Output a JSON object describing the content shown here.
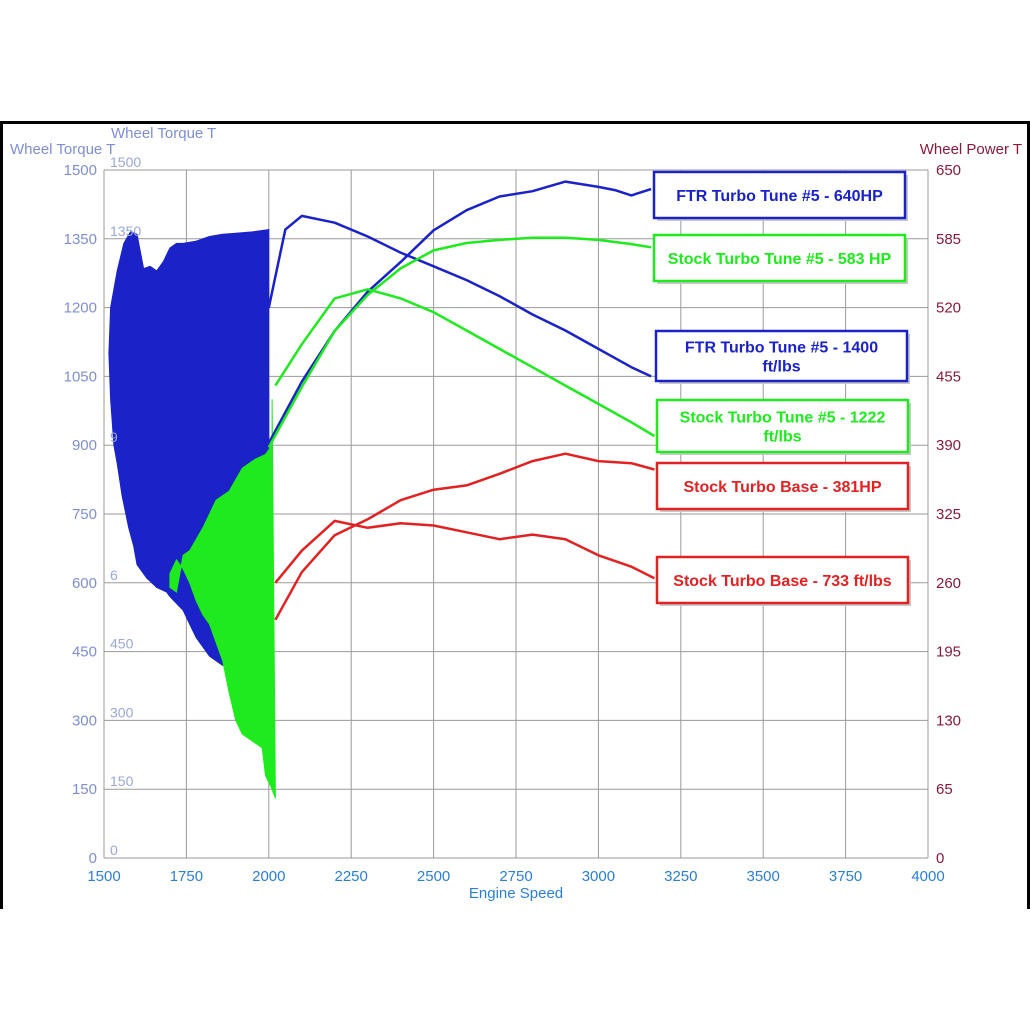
{
  "chart_data": {
    "type": "line",
    "xlabel": "Engine Speed",
    "ylabel_left": "Wheel Torque T",
    "ylabel_left_inner": "Wheel Torque T",
    "ylabel_right": "Wheel Power T",
    "xlim": [
      1500,
      4000
    ],
    "ylim_left": [
      0,
      1500
    ],
    "ylim_right": [
      0,
      650
    ],
    "x_ticks": [
      "1500",
      "1750",
      "2000",
      "2250",
      "2500",
      "2750",
      "3000",
      "3250",
      "3500",
      "3750",
      "4000"
    ],
    "y_left_ticks": [
      "0",
      "150",
      "300",
      "450",
      "600",
      "750",
      "900",
      "1050",
      "1200",
      "1350",
      "1500"
    ],
    "y_right_ticks": [
      "0",
      "65",
      "130",
      "195",
      "260",
      "325",
      "390",
      "455",
      "520",
      "585",
      "650"
    ],
    "y_inner_ticks": [
      "0",
      "150",
      "300",
      "450",
      "6",
      "9",
      "1350",
      "1500"
    ],
    "grid": true,
    "series": [
      {
        "name": "FTR Turbo Tune #5 - 640HP",
        "axis": "right",
        "color": "#1a22c8",
        "x": [
          2000,
          2100,
          2200,
          2300,
          2400,
          2500,
          2600,
          2700,
          2800,
          2900,
          3000,
          3050,
          3100,
          3160
        ],
        "y": [
          392,
          450,
          498,
          535,
          563,
          593,
          612,
          625,
          630,
          639,
          634,
          631,
          626,
          632
        ]
      },
      {
        "name": "FTR Turbo Tune #5 - 1400 ft/lbs",
        "axis": "left",
        "color": "#1a22c8",
        "x": [
          2000,
          2050,
          2100,
          2200,
          2300,
          2400,
          2500,
          2600,
          2700,
          2800,
          2900,
          3000,
          3100,
          3160
        ],
        "y": [
          1200,
          1370,
          1400,
          1385,
          1355,
          1320,
          1290,
          1260,
          1225,
          1185,
          1150,
          1110,
          1070,
          1050
        ]
      },
      {
        "name": "Stock Turbo Tune #5 - 583 HP",
        "axis": "right",
        "color": "#1eea1e",
        "x": [
          2000,
          2100,
          2200,
          2300,
          2400,
          2500,
          2600,
          2700,
          2800,
          2900,
          3000,
          3100,
          3160
        ],
        "y": [
          388,
          445,
          498,
          532,
          557,
          574,
          581,
          584,
          586,
          586,
          584,
          580,
          577
        ]
      },
      {
        "name": "Stock Turbo Tune #5 - 1222 ft/lbs",
        "axis": "left",
        "color": "#1eea1e",
        "x": [
          2020,
          2100,
          2200,
          2300,
          2400,
          2500,
          2600,
          2700,
          2800,
          2900,
          3000,
          3100,
          3170
        ],
        "y": [
          1030,
          1120,
          1220,
          1240,
          1220,
          1190,
          1150,
          1110,
          1070,
          1030,
          990,
          950,
          920
        ]
      },
      {
        "name": "Stock Turbo Base - 381HP",
        "axis": "right",
        "color": "#e22222",
        "x": [
          2020,
          2100,
          2200,
          2300,
          2400,
          2500,
          2600,
          2700,
          2800,
          2900,
          3000,
          3100,
          3170
        ],
        "y": [
          225,
          270,
          305,
          320,
          338,
          348,
          352,
          363,
          375,
          382,
          375,
          373,
          367
        ]
      },
      {
        "name": "Stock Turbo Base - 733 ft/lbs",
        "axis": "left",
        "color": "#e22222",
        "x": [
          2020,
          2100,
          2200,
          2300,
          2400,
          2500,
          2600,
          2700,
          2800,
          2900,
          3000,
          3100,
          3170
        ],
        "y": [
          600,
          670,
          735,
          720,
          730,
          725,
          710,
          695,
          705,
          695,
          660,
          635,
          610
        ]
      }
    ],
    "fill_regions": [
      {
        "color": "#1a22c8",
        "x": [
          2000,
          2000,
          1950,
          1900,
          1860,
          1820,
          1780,
          1760,
          1740,
          1700,
          1690,
          1660,
          1645,
          1630,
          1600,
          1590,
          1575,
          1555,
          1540,
          1530,
          1520,
          1515,
          1520,
          1540,
          1560,
          1580,
          1600,
          1620,
          1640,
          1660,
          1680,
          1700,
          1720,
          1740,
          1780,
          1820,
          1860,
          1900,
          1950
        ],
        "y": [
          1370,
          410,
          410,
          410,
          420,
          440,
          480,
          510,
          540,
          570,
          580,
          590,
          600,
          610,
          640,
          680,
          720,
          790,
          860,
          900,
          1000,
          1100,
          1200,
          1280,
          1340,
          1365,
          1360,
          1285,
          1290,
          1280,
          1300,
          1330,
          1340,
          1340,
          1345,
          1355,
          1360,
          1362,
          1365
        ]
      },
      {
        "color": "#1eea1e",
        "x": [
          2010,
          2020,
          2010,
          1990,
          1980,
          1940,
          1920,
          1900,
          1880,
          1860,
          1840,
          1820,
          1800,
          1780,
          1760,
          1740,
          1720,
          1700,
          1700,
          1720,
          1740,
          1760,
          1800,
          1840,
          1880,
          1920,
          1960,
          1990,
          2010
        ],
        "y": [
          1000,
          130,
          150,
          180,
          240,
          260,
          270,
          300,
          360,
          430,
          470,
          510,
          530,
          560,
          600,
          630,
          650,
          620,
          590,
          580,
          660,
          670,
          720,
          780,
          800,
          850,
          870,
          880,
          900
        ]
      }
    ]
  },
  "legend": {
    "items": [
      {
        "label_lines": [
          "FTR Turbo Tune #5 - 640HP"
        ],
        "color": "#1a22c8"
      },
      {
        "label_lines": [
          "Stock Turbo Tune #5 - 583 HP"
        ],
        "color": "#1eea1e"
      },
      {
        "label_lines": [
          "FTR Turbo Tune #5 - 1400",
          "ft/lbs"
        ],
        "color": "#1a22c8"
      },
      {
        "label_lines": [
          "Stock Turbo Tune #5 - 1222",
          "ft/lbs"
        ],
        "color": "#1eea1e"
      },
      {
        "label_lines": [
          "Stock Turbo Base - 381HP"
        ],
        "color": "#e22222"
      },
      {
        "label_lines": [
          "Stock Turbo Base - 733 ft/lbs"
        ],
        "color": "#e22222"
      }
    ]
  }
}
